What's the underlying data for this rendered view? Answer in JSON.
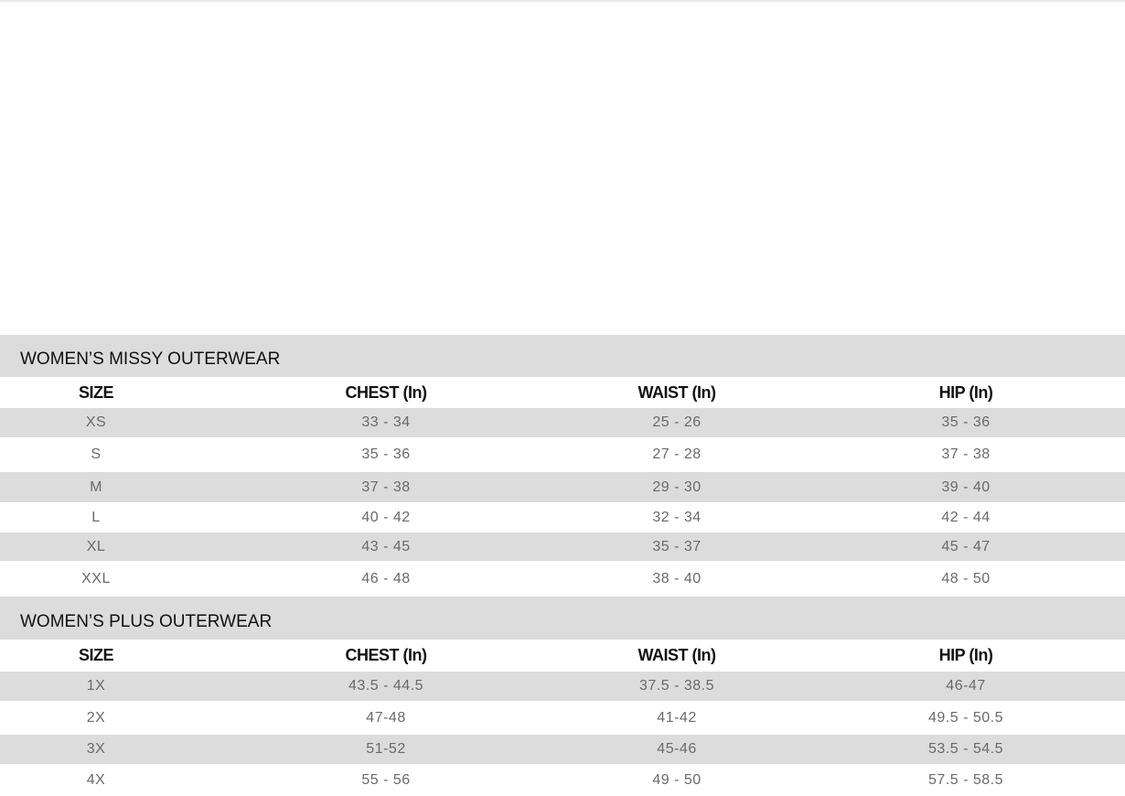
{
  "columns": [
    "SIZE",
    "CHEST (In)",
    "WAIST (In)",
    "HIP (In)"
  ],
  "tables": [
    {
      "title": "WOMEN’S MISSY OUTERWEAR",
      "rows": [
        [
          "XS",
          "33 - 34",
          "25 - 26",
          "35 - 36"
        ],
        [
          "S",
          "35 - 36",
          "27 - 28",
          "37 - 38"
        ],
        [
          "M",
          "37 - 38",
          "29 - 30",
          "39 - 40"
        ],
        [
          "L",
          "40 - 42",
          "32 - 34",
          "42 - 44"
        ],
        [
          "XL",
          "43 - 45",
          "35 - 37",
          "45 - 47"
        ],
        [
          "XXL",
          "46 - 48",
          "38 - 40",
          "48 - 50"
        ]
      ]
    },
    {
      "title": "WOMEN’S PLUS OUTERWEAR",
      "rows": [
        [
          "1X",
          "43.5 - 44.5",
          "37.5 - 38.5",
          "46-47"
        ],
        [
          "2X",
          "47-48",
          "41-42",
          "49.5 - 50.5"
        ],
        [
          "3X",
          "51-52",
          "45-46",
          "53.5 - 54.5"
        ],
        [
          "4X",
          "55 - 56",
          "49 - 50",
          "57.5 - 58.5"
        ]
      ]
    }
  ]
}
